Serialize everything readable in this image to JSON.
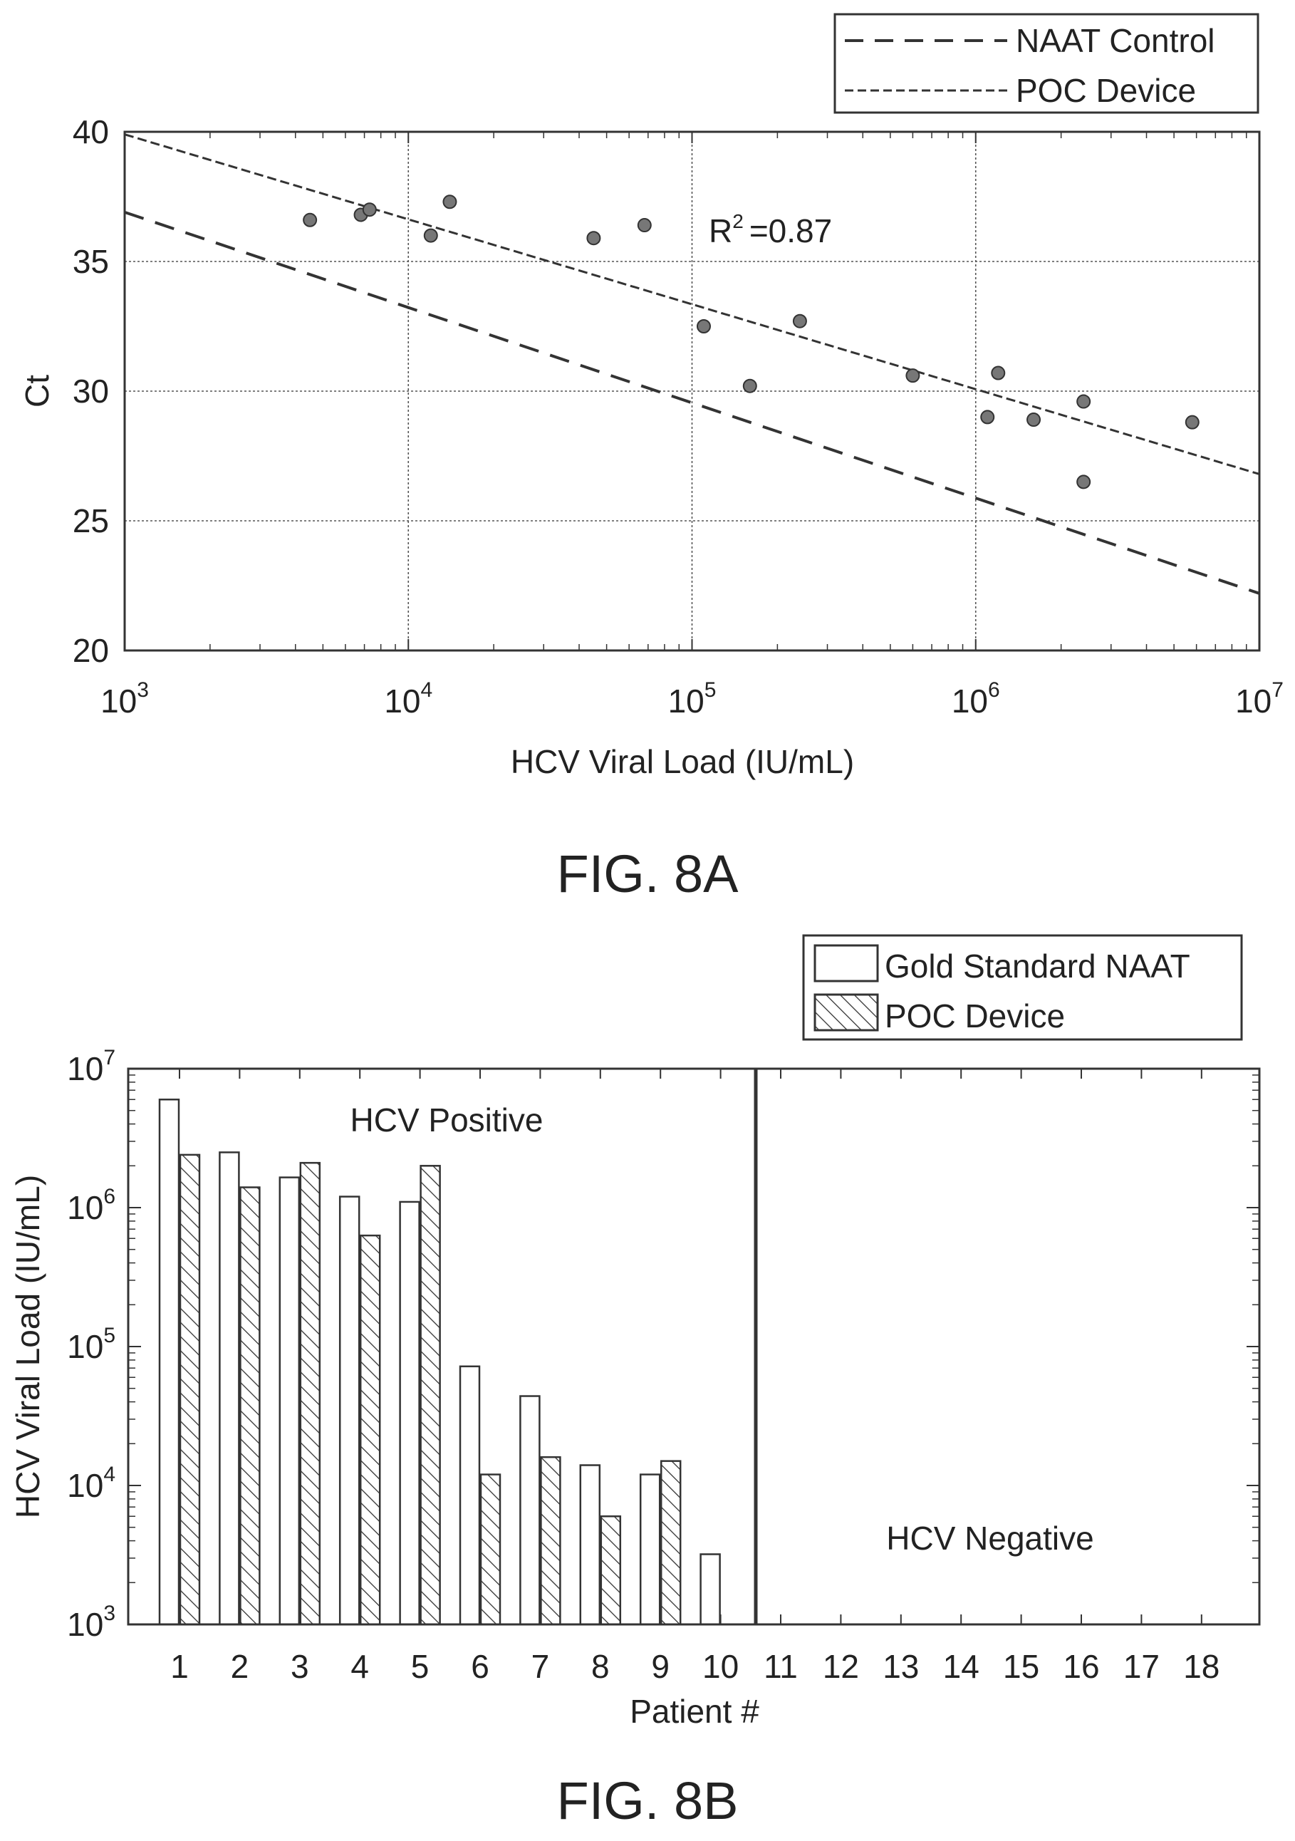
{
  "figure_a": {
    "caption": "FIG. 8A",
    "legend": [
      "NAAT Control",
      "POC Device"
    ],
    "r2_label": "R",
    "r2_sup": "2",
    "r2_value": "=0.87"
  },
  "figure_b": {
    "caption": "FIG. 8B",
    "legend": [
      "Gold Standard NAAT",
      "POC Device"
    ],
    "region_positive": "HCV Positive",
    "region_negative": "HCV Negative"
  },
  "chart_data": [
    {
      "type": "scatter",
      "title": "",
      "xlabel": "HCV Viral Load (IU/mL)",
      "ylabel": "Ct",
      "xscale": "log",
      "xlim": [
        1000,
        10000000
      ],
      "ylim": [
        20,
        40
      ],
      "x_ticks": [
        {
          "base": "10",
          "exp": "3",
          "value": 1000
        },
        {
          "base": "10",
          "exp": "4",
          "value": 10000
        },
        {
          "base": "10",
          "exp": "5",
          "value": 100000
        },
        {
          "base": "10",
          "exp": "6",
          "value": 1000000
        },
        {
          "base": "10",
          "exp": "7",
          "value": 10000000
        }
      ],
      "y_ticks": [
        "20",
        "25",
        "30",
        "35",
        "40"
      ],
      "grid": true,
      "legend_position": "top-right outside",
      "points": [
        {
          "x": 4500,
          "y": 36.6
        },
        {
          "x": 6800,
          "y": 36.8
        },
        {
          "x": 7300,
          "y": 37.0
        },
        {
          "x": 12000,
          "y": 36.0
        },
        {
          "x": 14000,
          "y": 37.3
        },
        {
          "x": 45000,
          "y": 35.9
        },
        {
          "x": 68000,
          "y": 36.4
        },
        {
          "x": 110000,
          "y": 32.5
        },
        {
          "x": 160000,
          "y": 30.2
        },
        {
          "x": 240000,
          "y": 32.7
        },
        {
          "x": 600000,
          "y": 30.6
        },
        {
          "x": 1100000,
          "y": 29.0
        },
        {
          "x": 1200000,
          "y": 30.7
        },
        {
          "x": 1600000,
          "y": 28.9
        },
        {
          "x": 2400000,
          "y": 26.5
        },
        {
          "x": 2400000,
          "y": 29.6
        },
        {
          "x": 5800000,
          "y": 28.8
        }
      ],
      "series": [
        {
          "name": "NAAT Control",
          "x": [
            1000,
            10000000
          ],
          "y": [
            36.9,
            22.2
          ]
        },
        {
          "name": "POC Device",
          "x": [
            1000,
            10000000
          ],
          "y": [
            39.9,
            26.8
          ]
        }
      ]
    },
    {
      "type": "bar",
      "title": "",
      "xlabel": "Patient #",
      "ylabel": "HCV Viral Load (IU/mL)",
      "yscale": "log",
      "ylim": [
        1000,
        10000000
      ],
      "y_ticks": [
        {
          "base": "10",
          "exp": "3",
          "value": 1000
        },
        {
          "base": "10",
          "exp": "4",
          "value": 10000
        },
        {
          "base": "10",
          "exp": "5",
          "value": 100000
        },
        {
          "base": "10",
          "exp": "6",
          "value": 1000000
        },
        {
          "base": "10",
          "exp": "7",
          "value": 10000000
        }
      ],
      "categories": [
        "1",
        "2",
        "3",
        "4",
        "5",
        "6",
        "7",
        "8",
        "9",
        "10",
        "11",
        "12",
        "13",
        "14",
        "15",
        "16",
        "17",
        "18"
      ],
      "legend_position": "top-right outside",
      "series": [
        {
          "name": "Gold Standard NAAT",
          "values": [
            6000000,
            2500000,
            1650000,
            1200000,
            1100000,
            72000,
            44000,
            14000,
            12000,
            3200,
            null,
            null,
            null,
            null,
            null,
            null,
            null,
            null
          ]
        },
        {
          "name": "POC Device",
          "values": [
            2400000,
            1400000,
            2100000,
            630000,
            2000000,
            12000,
            16000,
            6000,
            15000,
            null,
            null,
            null,
            null,
            null,
            null,
            null,
            null,
            null
          ]
        }
      ]
    }
  ]
}
